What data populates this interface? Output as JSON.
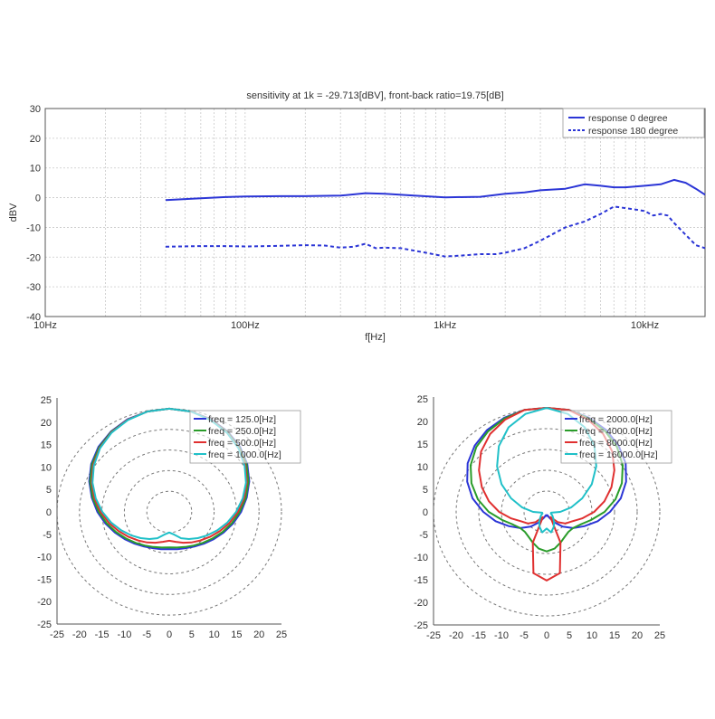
{
  "chart_data": [
    {
      "type": "line",
      "title": "sensitivity at 1k = -29.713[dBV], front-back ratio=19.75[dB]",
      "xlabel": "f[Hz]",
      "ylabel": "dBV",
      "xscale": "log",
      "xlim": [
        10,
        20000
      ],
      "ylim": [
        -40,
        30
      ],
      "grid": true,
      "legend": "top-right",
      "xticks": [
        10,
        100,
        1000,
        10000
      ],
      "xtick_labels": [
        "10Hz",
        "100Hz",
        "1kHz",
        "10kHz"
      ],
      "yticks": [
        -40,
        -30,
        -20,
        -10,
        0,
        10,
        20,
        30
      ],
      "ytick_labels": [
        "-40",
        "-30",
        "-20",
        "-10",
        "0",
        "10",
        "20",
        "30"
      ],
      "series": [
        {
          "name": "response 0 degree",
          "color": "#2b35d6",
          "dash": "solid",
          "x": [
            40,
            60,
            80,
            100,
            150,
            200,
            300,
            400,
            500,
            700,
            1000,
            1500,
            2000,
            2500,
            3000,
            4000,
            5000,
            6000,
            7000,
            8000,
            10000,
            12000,
            14000,
            16000,
            18000,
            20000
          ],
          "y": [
            -0.8,
            -0.2,
            0.2,
            0.4,
            0.5,
            0.5,
            0.7,
            1.5,
            1.3,
            0.7,
            0.1,
            0.3,
            1.3,
            1.8,
            2.5,
            3.0,
            4.5,
            4.0,
            3.5,
            3.5,
            4.0,
            4.5,
            6.0,
            5.0,
            3.0,
            1.0
          ]
        },
        {
          "name": "response 180 degree",
          "color": "#2b35d6",
          "dash": "dashed",
          "x": [
            40,
            60,
            80,
            100,
            150,
            200,
            250,
            300,
            350,
            400,
            450,
            500,
            600,
            800,
            1000,
            1200,
            1500,
            1800,
            2000,
            2500,
            3000,
            4000,
            5000,
            6000,
            7000,
            8000,
            9000,
            10000,
            11000,
            12000,
            13000,
            14000,
            16000,
            18000,
            20000
          ],
          "y": [
            -16.5,
            -16.3,
            -16.3,
            -16.4,
            -16.2,
            -16.0,
            -16.1,
            -16.8,
            -16.5,
            -15.5,
            -17.0,
            -16.8,
            -17.0,
            -18.5,
            -19.8,
            -19.5,
            -19.0,
            -19.0,
            -18.5,
            -17.0,
            -14.5,
            -10.0,
            -8.0,
            -5.5,
            -3.0,
            -3.5,
            -4.0,
            -4.5,
            -6.0,
            -5.5,
            -6.0,
            -8.5,
            -12.5,
            -16.0,
            -17.0
          ]
        }
      ]
    },
    {
      "type": "polar",
      "xlim": [
        -25,
        25
      ],
      "ylim": [
        -25,
        25
      ],
      "ticks": [
        -25,
        -20,
        -15,
        -10,
        -5,
        0,
        5,
        10,
        15,
        20,
        25
      ],
      "tick_labels": [
        "-25",
        "-20",
        "-15",
        "-10",
        "-5",
        "0",
        "5",
        "10",
        "15",
        "20",
        "25"
      ],
      "rings": [
        5,
        10,
        15,
        20,
        25
      ],
      "legend": "top-right",
      "series": [
        {
          "name": "freq = 125.0[Hz]",
          "color": "#2b35d6",
          "r": [
            25.0,
            24.8,
            24.3,
            23.4,
            22.3,
            20.9,
            19.3,
            17.6,
            16.0,
            14.5,
            13.1,
            11.9,
            10.9,
            10.1,
            9.5,
            9.2,
            9.0,
            9.2,
            9.5,
            10.1,
            10.9,
            11.9,
            13.1,
            14.5,
            16.0,
            17.6,
            19.3,
            20.9,
            22.3,
            23.4,
            24.3,
            24.8
          ]
        },
        {
          "name": "freq = 250.0[Hz]",
          "color": "#2a9c2a",
          "r": [
            25.0,
            24.8,
            24.2,
            23.3,
            22.1,
            20.7,
            19.1,
            17.4,
            15.7,
            14.2,
            12.8,
            11.6,
            10.6,
            9.8,
            9.2,
            8.8,
            8.6,
            8.8,
            9.2,
            9.8,
            10.6,
            11.6,
            12.8,
            14.2,
            15.7,
            17.4,
            19.1,
            20.7,
            22.1,
            23.3,
            24.2,
            24.8
          ]
        },
        {
          "name": "freq = 500.0[Hz]",
          "color": "#e03030",
          "r": [
            25.0,
            24.8,
            24.2,
            23.2,
            21.9,
            20.4,
            18.7,
            17.0,
            15.3,
            13.7,
            12.2,
            10.9,
            9.8,
            8.9,
            8.1,
            7.4,
            7.0,
            7.4,
            8.1,
            8.9,
            9.8,
            10.9,
            12.2,
            13.7,
            15.3,
            17.0,
            18.7,
            20.4,
            21.9,
            23.2,
            24.2,
            24.8
          ]
        },
        {
          "name": "freq = 1000.0[Hz]",
          "color": "#20c0c8",
          "r": [
            25.0,
            24.8,
            24.1,
            23.1,
            21.8,
            20.2,
            18.5,
            16.7,
            14.9,
            13.2,
            11.6,
            10.2,
            9.0,
            7.9,
            6.9,
            5.6,
            5.0,
            5.6,
            6.9,
            7.9,
            9.0,
            10.2,
            11.6,
            13.2,
            14.9,
            16.7,
            18.5,
            20.2,
            21.8,
            23.1,
            24.1,
            24.8
          ]
        }
      ]
    },
    {
      "type": "polar",
      "xlim": [
        -25,
        25
      ],
      "ylim": [
        -25,
        25
      ],
      "ticks": [
        -25,
        -20,
        -15,
        -10,
        -5,
        0,
        5,
        10,
        15,
        20,
        25
      ],
      "tick_labels": [
        "-25",
        "-20",
        "-15",
        "-10",
        "-5",
        "0",
        "5",
        "10",
        "15",
        "20",
        "25"
      ],
      "rings": [
        5,
        10,
        15,
        20,
        25
      ],
      "legend": "top-right",
      "series": [
        {
          "name": "freq = 2000.0[Hz]",
          "color": "#2b35d6",
          "r": [
            25.0,
            25.0,
            24.5,
            23.7,
            22.5,
            21.0,
            19.0,
            16.7,
            14.0,
            11.5,
            9.0,
            7.0,
            5.0,
            3.0,
            1.5,
            0.8,
            1.0,
            0.8,
            1.5,
            3.0,
            5.0,
            7.0,
            9.0,
            11.5,
            14.0,
            16.7,
            19.0,
            21.0,
            22.5,
            23.7,
            24.5,
            25.0
          ]
        },
        {
          "name": "freq = 4000.0[Hz]",
          "color": "#2a9c2a",
          "r": [
            25.0,
            25.0,
            24.3,
            23.3,
            22.0,
            20.2,
            18.0,
            15.5,
            12.8,
            10.0,
            8.0,
            7.0,
            6.8,
            7.2,
            8.0,
            9.0,
            9.5,
            9.0,
            8.0,
            7.2,
            6.8,
            7.0,
            8.0,
            10.0,
            12.8,
            15.5,
            18.0,
            20.2,
            22.0,
            23.3,
            24.3,
            25.0
          ]
        },
        {
          "name": "freq = 8000.0[Hz]",
          "color": "#e03030",
          "r": [
            25.0,
            25.0,
            24.0,
            22.5,
            20.5,
            18.0,
            15.5,
            13.0,
            10.5,
            8.0,
            6.0,
            5.0,
            3.5,
            1.5,
            8.0,
            15.0,
            16.5,
            15.0,
            8.0,
            1.5,
            3.5,
            5.0,
            6.0,
            8.0,
            10.5,
            13.0,
            15.5,
            18.0,
            20.5,
            22.5,
            24.0,
            25.0
          ]
        },
        {
          "name": "freq = 16000.0[Hz]",
          "color": "#20c0c8",
          "r": [
            25.0,
            24.0,
            22.0,
            19.0,
            15.5,
            12.0,
            8.5,
            5.5,
            3.0,
            1.0,
            1.0,
            1.5,
            2.0,
            3.0,
            4.0,
            5.0,
            4.0,
            5.0,
            4.0,
            3.0,
            2.0,
            1.5,
            1.0,
            1.0,
            3.0,
            5.5,
            8.5,
            12.0,
            15.5,
            19.0,
            22.0,
            24.0
          ]
        }
      ]
    }
  ]
}
